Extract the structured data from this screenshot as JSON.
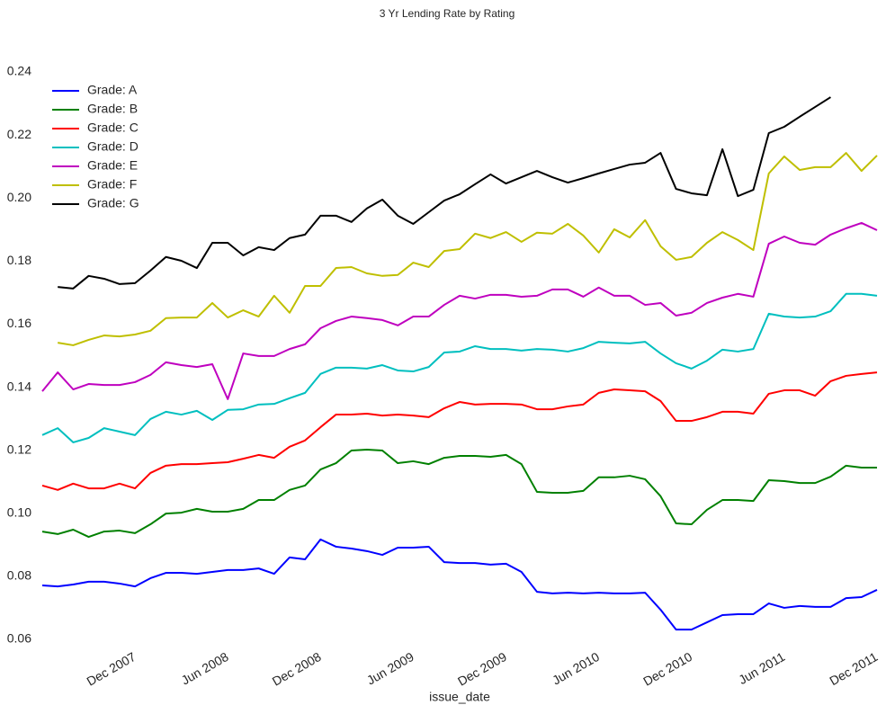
{
  "chart_data": {
    "type": "line",
    "title": "3 Yr Lending Rate by Rating",
    "x_label": "issue_date",
    "x": [
      "2007-06",
      "2007-07",
      "2007-08",
      "2007-09",
      "2007-10",
      "2007-11",
      "2007-12",
      "2008-01",
      "2008-02",
      "2008-03",
      "2008-04",
      "2008-05",
      "2008-06",
      "2008-07",
      "2008-08",
      "2008-09",
      "2008-10",
      "2008-11",
      "2008-12",
      "2009-01",
      "2009-02",
      "2009-03",
      "2009-04",
      "2009-05",
      "2009-06",
      "2009-07",
      "2009-08",
      "2009-09",
      "2009-10",
      "2009-11",
      "2009-12",
      "2010-01",
      "2010-02",
      "2010-03",
      "2010-04",
      "2010-05",
      "2010-06",
      "2010-07",
      "2010-08",
      "2010-09",
      "2010-10",
      "2010-11",
      "2010-12",
      "2011-01",
      "2011-02",
      "2011-03",
      "2011-04",
      "2011-05",
      "2011-06",
      "2011-07",
      "2011-08",
      "2011-09",
      "2011-10",
      "2011-11",
      "2011-12"
    ],
    "xlim": [
      "2007-06",
      "2011-12"
    ],
    "xticks": [
      {
        "value": "2007-12",
        "label": "Dec 2007"
      },
      {
        "value": "2008-06",
        "label": "Jun 2008"
      },
      {
        "value": "2008-12",
        "label": "Dec 2008"
      },
      {
        "value": "2009-06",
        "label": "Jun 2009"
      },
      {
        "value": "2009-12",
        "label": "Dec 2009"
      },
      {
        "value": "2010-06",
        "label": "Jun 2010"
      },
      {
        "value": "2010-12",
        "label": "Dec 2010"
      },
      {
        "value": "2011-06",
        "label": "Jun 2011"
      },
      {
        "value": "2011-12",
        "label": "Dec 2011"
      }
    ],
    "ylim": [
      0.06,
      0.24
    ],
    "yticks": [
      0.06,
      0.08,
      {
        "value": 0.1,
        "label": "0.10"
      },
      0.12,
      0.14,
      0.16,
      0.18,
      {
        "value": 0.2,
        "label": "0.20"
      },
      0.22,
      0.24
    ],
    "grid": false,
    "legend": "upper left",
    "series": [
      {
        "name": "Grade: A",
        "color": "#0000ff",
        "values": [
          0.0771,
          0.0768,
          0.0774,
          0.0783,
          0.0783,
          0.0777,
          0.0768,
          0.0794,
          0.0811,
          0.0811,
          0.0808,
          0.0814,
          0.082,
          0.082,
          0.0825,
          0.0808,
          0.086,
          0.0854,
          0.0917,
          0.0894,
          0.0888,
          0.088,
          0.0868,
          0.0891,
          0.0891,
          0.0894,
          0.0845,
          0.0842,
          0.0842,
          0.0837,
          0.084,
          0.0814,
          0.0751,
          0.0746,
          0.0748,
          0.0746,
          0.0748,
          0.0746,
          0.0746,
          0.0748,
          0.0694,
          0.0631,
          0.0631,
          0.0654,
          0.0677,
          0.068,
          0.068,
          0.0714,
          0.07,
          0.0706,
          0.0703,
          0.0703,
          0.0731,
          0.0734,
          0.0757
        ]
      },
      {
        "name": "Grade: B",
        "color": "#008000",
        "values": [
          0.0942,
          0.0934,
          0.0948,
          0.0925,
          0.0942,
          0.0945,
          0.0937,
          0.0965,
          0.0999,
          0.1002,
          0.1014,
          0.1005,
          0.1005,
          0.1014,
          0.1042,
          0.1042,
          0.1074,
          0.1088,
          0.1139,
          0.1159,
          0.1199,
          0.1202,
          0.1199,
          0.1159,
          0.1165,
          0.1156,
          0.1176,
          0.1182,
          0.1182,
          0.1179,
          0.1185,
          0.1156,
          0.1068,
          0.1065,
          0.1065,
          0.1071,
          0.1114,
          0.1114,
          0.1119,
          0.1108,
          0.1054,
          0.0968,
          0.0965,
          0.1011,
          0.1042,
          0.1042,
          0.1039,
          0.1105,
          0.1102,
          0.1096,
          0.1096,
          0.1116,
          0.1151,
          0.1145,
          0.1145
        ]
      },
      {
        "name": "Grade: C",
        "color": "#ff0000",
        "values": [
          0.1088,
          0.1074,
          0.1094,
          0.1079,
          0.1079,
          0.1094,
          0.1079,
          0.1128,
          0.1151,
          0.1156,
          0.1156,
          0.1159,
          0.1162,
          0.1173,
          0.1185,
          0.1176,
          0.1211,
          0.1231,
          0.1273,
          0.1313,
          0.1313,
          0.1316,
          0.131,
          0.1313,
          0.131,
          0.1305,
          0.1333,
          0.1353,
          0.1345,
          0.1347,
          0.1347,
          0.1345,
          0.133,
          0.133,
          0.1339,
          0.1345,
          0.1382,
          0.1393,
          0.139,
          0.1387,
          0.1356,
          0.1293,
          0.1293,
          0.1305,
          0.1322,
          0.1322,
          0.1316,
          0.1379,
          0.139,
          0.139,
          0.1373,
          0.1419,
          0.1436,
          0.1442,
          0.1447
        ]
      },
      {
        "name": "Grade: D",
        "color": "#00bfbf",
        "values": [
          0.1248,
          0.127,
          0.1225,
          0.1239,
          0.127,
          0.1259,
          0.1248,
          0.1299,
          0.1322,
          0.1313,
          0.1325,
          0.1296,
          0.1328,
          0.133,
          0.1345,
          0.1347,
          0.1365,
          0.1382,
          0.1442,
          0.1462,
          0.1462,
          0.1459,
          0.147,
          0.1453,
          0.145,
          0.1464,
          0.151,
          0.1513,
          0.153,
          0.1521,
          0.1521,
          0.1516,
          0.1521,
          0.1519,
          0.1513,
          0.1524,
          0.1544,
          0.1541,
          0.1539,
          0.1544,
          0.1507,
          0.1476,
          0.1459,
          0.1484,
          0.1519,
          0.1513,
          0.1521,
          0.1633,
          0.1624,
          0.1621,
          0.1624,
          0.1641,
          0.1696,
          0.1696,
          0.169
        ]
      },
      {
        "name": "Grade: E",
        "color": "#bf00bf",
        "values": [
          0.1387,
          0.1447,
          0.1393,
          0.141,
          0.1407,
          0.1407,
          0.1416,
          0.1439,
          0.1479,
          0.147,
          0.1464,
          0.1473,
          0.1362,
          0.1507,
          0.1499,
          0.1499,
          0.1521,
          0.1536,
          0.1587,
          0.161,
          0.1624,
          0.1619,
          0.1613,
          0.1596,
          0.1624,
          0.1624,
          0.1661,
          0.169,
          0.1681,
          0.1693,
          0.1693,
          0.1687,
          0.169,
          0.171,
          0.171,
          0.1687,
          0.1716,
          0.169,
          0.169,
          0.1661,
          0.1667,
          0.1627,
          0.1636,
          0.1667,
          0.1684,
          0.1696,
          0.1687,
          0.1855,
          0.1878,
          0.1858,
          0.1852,
          0.1884,
          0.1904,
          0.1921,
          0.1898
        ]
      },
      {
        "name": "Grade: F",
        "color": "#bfbf00",
        "values": [
          null,
          0.1541,
          0.1533,
          0.155,
          0.1564,
          0.1561,
          0.1567,
          0.1579,
          0.1619,
          0.1621,
          0.1621,
          0.1667,
          0.1621,
          0.1644,
          0.1624,
          0.169,
          0.1636,
          0.1721,
          0.1721,
          0.1778,
          0.1781,
          0.1761,
          0.1753,
          0.1756,
          0.1795,
          0.1781,
          0.1832,
          0.1838,
          0.1887,
          0.1873,
          0.1892,
          0.1861,
          0.189,
          0.1887,
          0.1918,
          0.1881,
          0.1827,
          0.1901,
          0.1875,
          0.193,
          0.1847,
          0.1804,
          0.1813,
          0.1858,
          0.1892,
          0.1867,
          0.1835,
          0.2078,
          0.2132,
          0.2089,
          0.2098,
          0.2098,
          0.2143,
          0.2086,
          0.2135
        ]
      },
      {
        "name": "Grade: G",
        "color": "#000000",
        "values": [
          null,
          0.1718,
          0.1713,
          0.1753,
          0.1744,
          0.1727,
          0.173,
          0.177,
          0.1813,
          0.1801,
          0.1778,
          0.1858,
          0.1858,
          0.1818,
          0.1844,
          0.1835,
          0.1873,
          0.1884,
          0.1944,
          0.1944,
          0.1924,
          0.1967,
          0.1995,
          0.1944,
          0.1918,
          0.1955,
          0.1992,
          0.2012,
          0.2044,
          0.2075,
          0.2046,
          0.2066,
          0.2086,
          0.2066,
          0.2049,
          0.2063,
          0.2078,
          0.2092,
          0.2106,
          0.2112,
          0.2143,
          0.2029,
          0.2015,
          0.2009,
          0.2155,
          0.2006,
          0.2026,
          0.2206,
          0.2226,
          0.2258,
          0.2289,
          0.232,
          null,
          null,
          null
        ]
      }
    ]
  }
}
